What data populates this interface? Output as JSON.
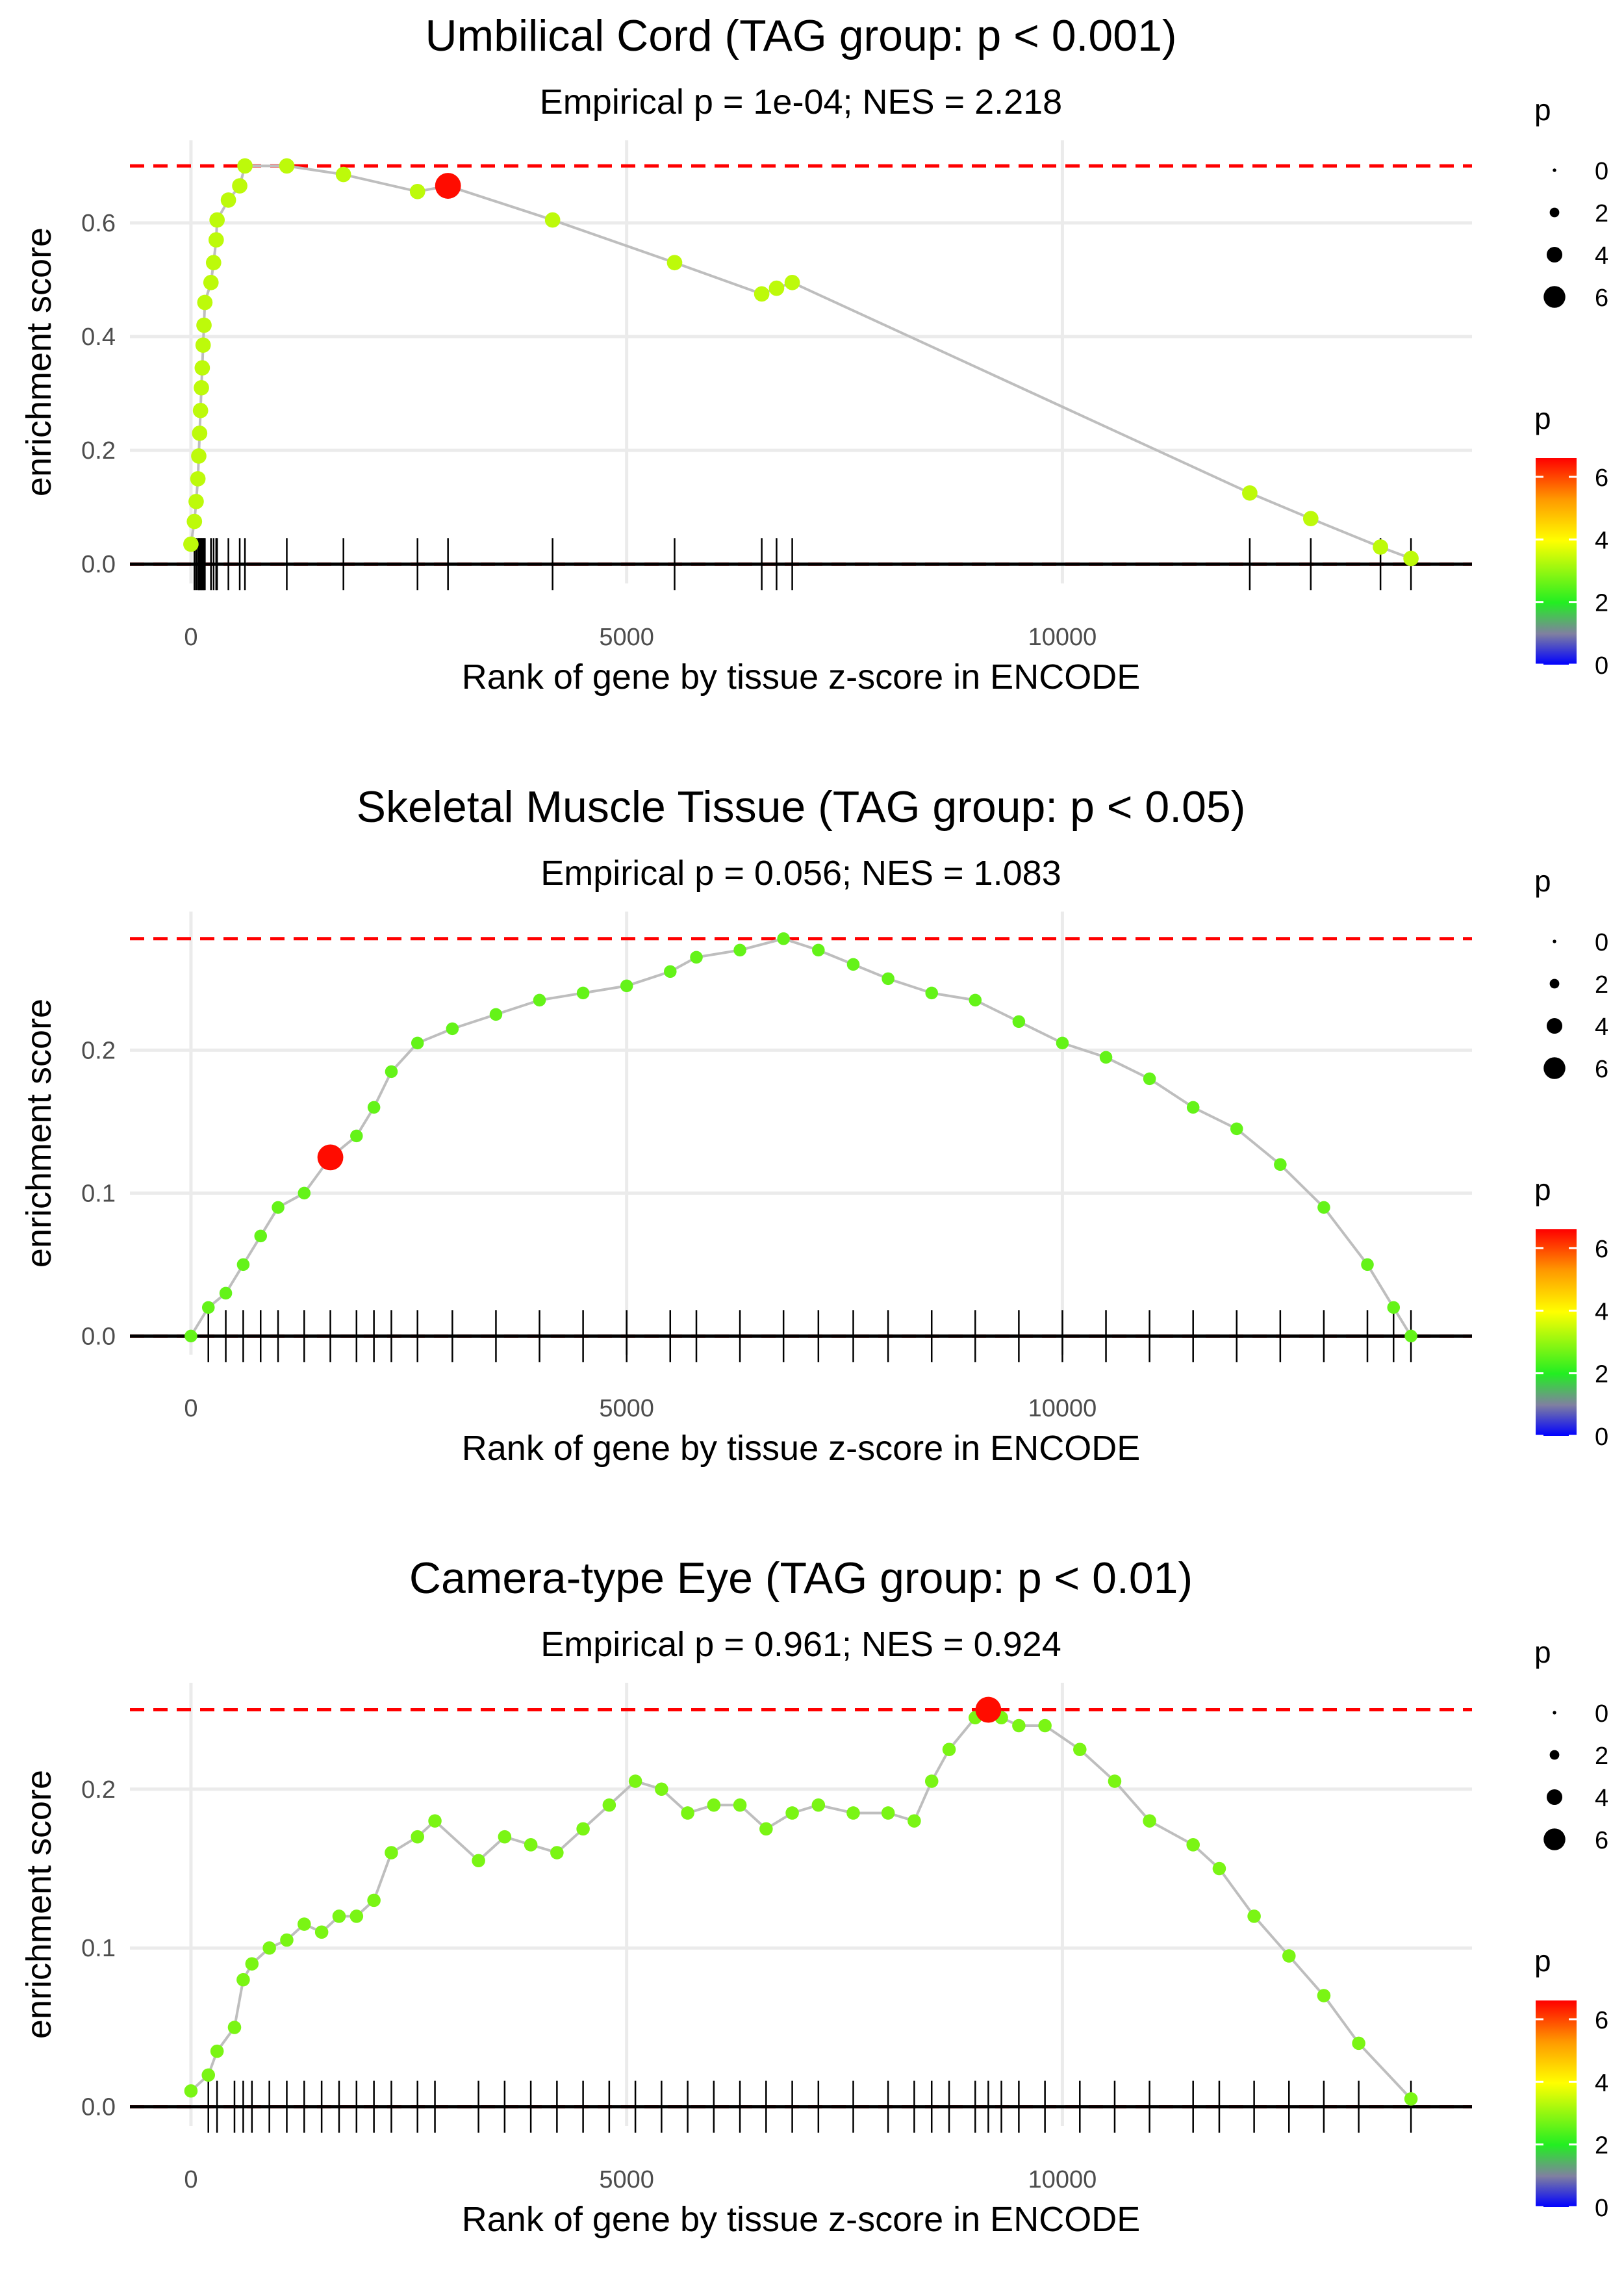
{
  "chart_data": [
    {
      "type": "scatter",
      "title": "Umbilical Cord (TAG group: p < 0.001)",
      "subtitle": "Empirical p = 1e-04; NES = 2.218",
      "xlabel": "Rank of gene by tissue z-score in ENCODE",
      "ylabel": "enrichment score",
      "xlim": [
        -700,
        14700
      ],
      "ylim": [
        -0.034,
        0.745
      ],
      "xticks": [
        0,
        5000,
        10000
      ],
      "xtick_labels": [
        "0",
        "5000",
        "10000"
      ],
      "yticks": [
        0,
        0.2,
        0.4,
        0.6
      ],
      "ytick_labels": [
        "0.0",
        "0.2",
        "0.4",
        "0.6"
      ],
      "max_es": 0.7,
      "p_default": 3.4,
      "x": [
        0,
        40,
        60,
        80,
        90,
        100,
        110,
        120,
        130,
        140,
        150,
        160,
        230,
        260,
        290,
        300,
        430,
        560,
        620,
        1100,
        1750,
        2600,
        2950,
        4150,
        5550,
        6550,
        6720,
        6900,
        12150,
        12850,
        13650,
        14000
      ],
      "es": [
        0.035,
        0.075,
        0.11,
        0.15,
        0.19,
        0.23,
        0.27,
        0.31,
        0.345,
        0.385,
        0.42,
        0.46,
        0.495,
        0.53,
        0.57,
        0.605,
        0.64,
        0.665,
        0.7,
        0.7,
        0.685,
        0.655,
        0.665,
        0.605,
        0.53,
        0.475,
        0.485,
        0.495,
        0.125,
        0.08,
        0.03,
        0.01
      ],
      "highlight": {
        "x": 2950,
        "es": 0.665,
        "p": 6.5
      }
    },
    {
      "type": "scatter",
      "title": "Skeletal Muscle Tissue (TAG group: p < 0.05)",
      "subtitle": "Empirical p = 0.056; NES = 1.083",
      "xlabel": "Rank of gene by tissue z-score in ENCODE",
      "ylabel": "enrichment score",
      "xlim": [
        -700,
        14700
      ],
      "ylim": [
        -0.013,
        0.297
      ],
      "xticks": [
        0,
        5000,
        10000
      ],
      "xtick_labels": [
        "0",
        "5000",
        "10000"
      ],
      "yticks": [
        0,
        0.1,
        0.2
      ],
      "ytick_labels": [
        "0.0",
        "0.1",
        "0.2"
      ],
      "max_es": 0.278,
      "p_default": 2.6,
      "x": [
        0,
        200,
        400,
        600,
        800,
        1000,
        1300,
        1600,
        1900,
        2100,
        2300,
        2600,
        3000,
        3500,
        4000,
        4500,
        5000,
        5500,
        5800,
        6300,
        6800,
        7200,
        7600,
        8000,
        8500,
        9000,
        9500,
        10000,
        10500,
        11000,
        11500,
        12000,
        12500,
        13000,
        13500,
        13800,
        14000
      ],
      "es": [
        0.0,
        0.02,
        0.03,
        0.05,
        0.07,
        0.09,
        0.1,
        0.125,
        0.14,
        0.16,
        0.185,
        0.205,
        0.215,
        0.225,
        0.235,
        0.24,
        0.245,
        0.255,
        0.265,
        0.27,
        0.278,
        0.27,
        0.26,
        0.25,
        0.24,
        0.235,
        0.22,
        0.205,
        0.195,
        0.18,
        0.16,
        0.145,
        0.12,
        0.09,
        0.05,
        0.02,
        0.0
      ],
      "highlight": {
        "x": 1600,
        "es": 0.125,
        "p": 6.5
      }
    },
    {
      "type": "scatter",
      "title": "Camera-type Eye (TAG group: p < 0.01)",
      "subtitle": "Empirical p = 0.961; NES = 0.924",
      "xlabel": "Rank of gene by tissue z-score in ENCODE",
      "ylabel": "enrichment score",
      "xlim": [
        -700,
        14700
      ],
      "ylim": [
        -0.012,
        0.267
      ],
      "xticks": [
        0,
        5000,
        10000
      ],
      "xtick_labels": [
        "0",
        "5000",
        "10000"
      ],
      "yticks": [
        0,
        0.1,
        0.2
      ],
      "ytick_labels": [
        "0.0",
        "0.1",
        "0.2"
      ],
      "max_es": 0.25,
      "p_default": 2.8,
      "x": [
        0,
        200,
        300,
        500,
        600,
        700,
        900,
        1100,
        1300,
        1500,
        1700,
        1900,
        2100,
        2300,
        2600,
        2800,
        3300,
        3600,
        3900,
        4200,
        4500,
        4800,
        5100,
        5400,
        5700,
        6000,
        6300,
        6600,
        6900,
        7200,
        7600,
        8000,
        8300,
        8500,
        8700,
        9000,
        9150,
        9300,
        9500,
        9800,
        10200,
        10600,
        11000,
        11500,
        11800,
        12200,
        12600,
        13000,
        13400,
        14000
      ],
      "es": [
        0.01,
        0.02,
        0.035,
        0.05,
        0.08,
        0.09,
        0.1,
        0.105,
        0.115,
        0.11,
        0.12,
        0.12,
        0.13,
        0.16,
        0.17,
        0.18,
        0.155,
        0.17,
        0.165,
        0.16,
        0.175,
        0.19,
        0.205,
        0.2,
        0.185,
        0.19,
        0.19,
        0.175,
        0.185,
        0.19,
        0.185,
        0.185,
        0.18,
        0.205,
        0.225,
        0.245,
        0.25,
        0.245,
        0.24,
        0.24,
        0.225,
        0.205,
        0.18,
        0.165,
        0.15,
        0.12,
        0.095,
        0.07,
        0.04,
        0.005
      ],
      "highlight": {
        "x": 9150,
        "es": 0.25,
        "p": 6.5
      }
    }
  ],
  "legend": {
    "size_title": "p",
    "size_labels": [
      "0",
      "2",
      "4",
      "6"
    ],
    "size_values": [
      0,
      2,
      4,
      6
    ],
    "color_title": "p",
    "color_labels": [
      "0",
      "2",
      "4",
      "6"
    ],
    "color_values": [
      0,
      2,
      4,
      6
    ],
    "color_range": [
      0,
      6.6
    ],
    "colors": {
      "low": "#0000ff",
      "mid1": "#888888",
      "mid2": "#22ee22",
      "mid3": "#ffff00",
      "high": "#ff0000"
    }
  }
}
